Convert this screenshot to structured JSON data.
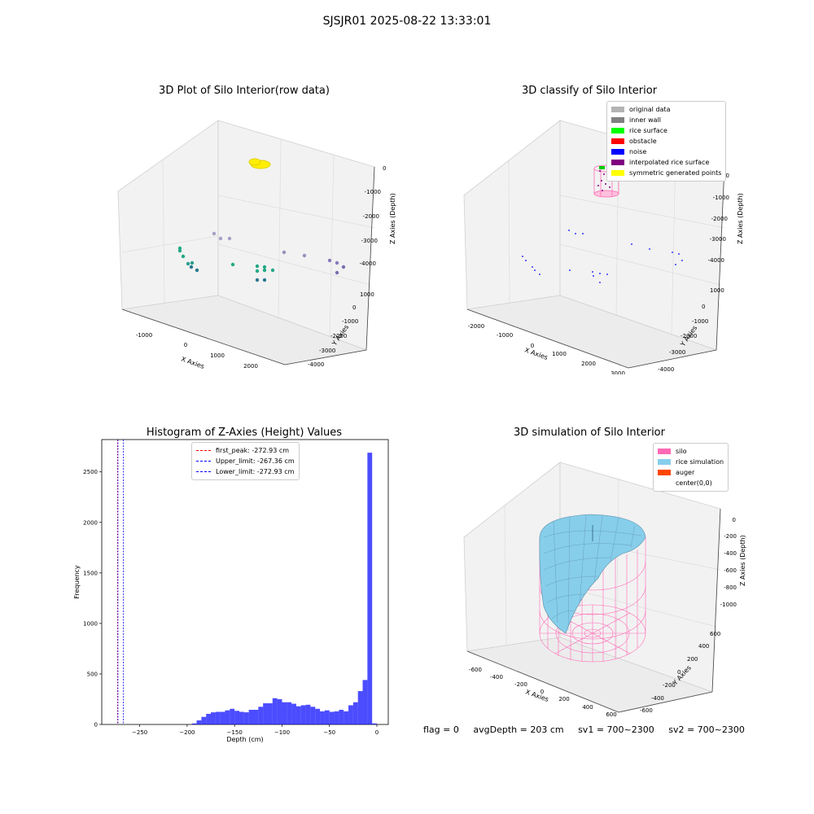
{
  "suptitle": "SJSJR01 2025-08-22 13:33:01",
  "panels": {
    "raw": {
      "title": "3D Plot of Silo Interior(row data)",
      "xlabel": "X Axies",
      "ylabel": "Y Axies",
      "zlabel": "Z Axies (Depth)",
      "xticks": [
        "-1000",
        "0",
        "1000",
        "2000"
      ],
      "yticks": [
        "1000",
        "0",
        "-1000",
        "-2000",
        "-3000",
        "-4000"
      ],
      "zticks": [
        "0",
        "-1000",
        "-2000",
        "-3000",
        "-4000"
      ]
    },
    "classify": {
      "title": "3D classify of Silo Interior",
      "xlabel": "X Axies",
      "ylabel": "Y Axies",
      "zlabel": "Z Axies (Depth)",
      "xticks": [
        "-2000",
        "-1000",
        "0",
        "1000",
        "2000",
        "3000"
      ],
      "yticks": [
        "1000",
        "0",
        "-1000",
        "-2000",
        "-3000",
        "-4000"
      ],
      "zticks": [
        "0",
        "-1000",
        "-2000",
        "-3000",
        "-4000"
      ],
      "legend": [
        {
          "label": "original data",
          "color": "#b3b3b3"
        },
        {
          "label": "inner wall",
          "color": "#808080"
        },
        {
          "label": "rice surface",
          "color": "#00ff00"
        },
        {
          "label": "obstacle",
          "color": "#ff0000"
        },
        {
          "label": "noise",
          "color": "#0000ff"
        },
        {
          "label": "interpolated rice surface",
          "color": "#800080"
        },
        {
          "label": "symmetric generated points",
          "color": "#ffff00"
        }
      ]
    },
    "simulation": {
      "title": "3D simulation of Silo Interior",
      "xlabel": "X Axies",
      "ylabel": "Y Axies",
      "zlabel": "Z Axies (Depth)",
      "xticks": [
        "-600",
        "-400",
        "-200",
        "0",
        "200",
        "400",
        "600"
      ],
      "yticks": [
        "600",
        "400",
        "200",
        "0",
        "-200",
        "-400",
        "-600"
      ],
      "zticks": [
        "0",
        "-200",
        "-400",
        "-600",
        "-800",
        "-1000"
      ],
      "legend": [
        {
          "label": "silo",
          "color": "#ff69b4"
        },
        {
          "label": "rice simulation",
          "color": "#87ceeb"
        },
        {
          "label": "auger",
          "color": "#ff4500"
        },
        {
          "label": "center(0,0)",
          "color": ""
        }
      ]
    }
  },
  "chart_data": {
    "type": "bar",
    "title": "Histogram of Z-Axies (Height) Values",
    "xlabel": "Depth (cm)",
    "ylabel": "Frequency",
    "xlim": [
      -290,
      12
    ],
    "ylim": [
      0,
      2820
    ],
    "xticks": [
      -250,
      -200,
      -150,
      -100,
      -50,
      0
    ],
    "yticks": [
      0,
      500,
      1000,
      1500,
      2000,
      2500
    ],
    "bin_width": 5,
    "bin_starts": [
      -195,
      -190,
      -185,
      -180,
      -175,
      -170,
      -165,
      -160,
      -155,
      -150,
      -145,
      -140,
      -135,
      -130,
      -125,
      -120,
      -115,
      -110,
      -105,
      -100,
      -95,
      -90,
      -85,
      -80,
      -75,
      -70,
      -65,
      -60,
      -55,
      -50,
      -45,
      -40,
      -35,
      -30,
      -25,
      -20,
      -15,
      -10,
      -5
    ],
    "values": [
      10,
      40,
      75,
      105,
      120,
      125,
      125,
      140,
      155,
      135,
      125,
      120,
      145,
      145,
      175,
      210,
      210,
      260,
      250,
      220,
      220,
      205,
      180,
      190,
      195,
      175,
      155,
      130,
      140,
      125,
      130,
      145,
      130,
      190,
      220,
      330,
      440,
      2690,
      10
    ],
    "bar_color": "#0000ff",
    "vlines": [
      {
        "label": "first_peak: -272.93 cm",
        "x": -272.93,
        "color": "#ff0000"
      },
      {
        "label": "Upper_limit: -267.36 cm",
        "x": -267.36,
        "color": "#0000ff"
      },
      {
        "label": "Lower_limit: -272.93 cm",
        "x": -272.93,
        "color": "#0000ff"
      }
    ]
  },
  "status": {
    "flag": "flag = 0",
    "avg": "avgDepth = 203 cm",
    "sv1": "sv1 = 700~2300",
    "sv2": "sv2 = 700~2300"
  }
}
